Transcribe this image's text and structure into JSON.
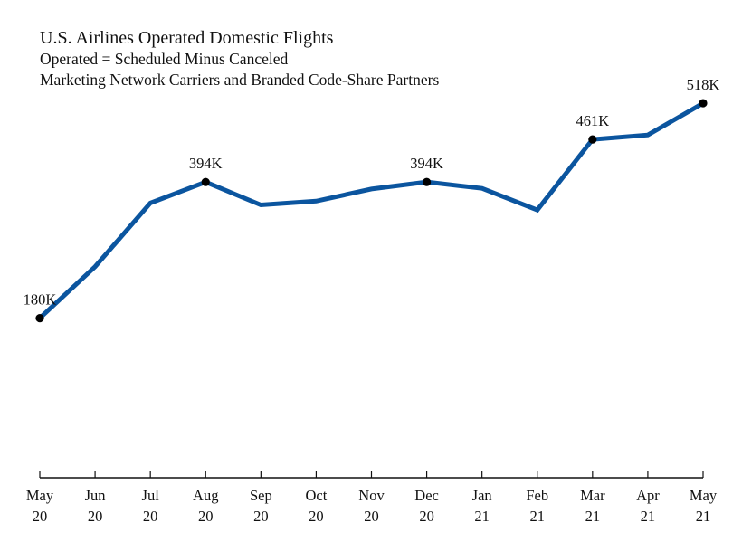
{
  "chart_data": {
    "type": "line",
    "title": "U.S. Airlines Operated Domestic Flights",
    "subtitles": [
      "Operated = Scheduled Minus Canceled",
      "Marketing Network Carriers and Branded Code-Share Partners"
    ],
    "categories": [
      [
        "May",
        "20"
      ],
      [
        "Jun",
        "20"
      ],
      [
        "Jul",
        "20"
      ],
      [
        "Aug",
        "20"
      ],
      [
        "Sep",
        "20"
      ],
      [
        "Oct",
        "20"
      ],
      [
        "Nov",
        "20"
      ],
      [
        "Dec",
        "20"
      ],
      [
        "Jan",
        "21"
      ],
      [
        "Feb",
        "21"
      ],
      [
        "Mar",
        "21"
      ],
      [
        "Apr",
        "21"
      ],
      [
        "May",
        "21"
      ]
    ],
    "series": [
      {
        "values": [
          180,
          261,
          361,
          394,
          358,
          364,
          383,
          394,
          384,
          350,
          461,
          468,
          518
        ],
        "color": "#0b559f"
      }
    ],
    "data_labels": [
      {
        "index": 0,
        "text": "180K"
      },
      {
        "index": 3,
        "text": "394K"
      },
      {
        "index": 7,
        "text": "394K"
      },
      {
        "index": 10,
        "text": "461K"
      },
      {
        "index": 12,
        "text": "518K"
      }
    ],
    "unit": "thousand flights",
    "ylim": [
      -71,
      538
    ],
    "y_axis_visible": false,
    "grid": false,
    "legend": "none"
  }
}
